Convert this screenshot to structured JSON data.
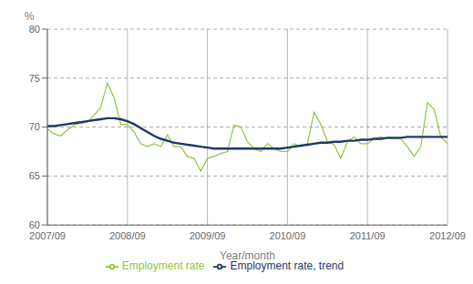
{
  "chart_data": {
    "type": "line",
    "xlabel": "Year/month",
    "ylabel": "%",
    "categories": [
      "2007/09",
      null,
      null,
      null,
      null,
      null,
      null,
      null,
      null,
      null,
      null,
      null,
      "2008/09",
      null,
      null,
      null,
      null,
      null,
      null,
      null,
      null,
      null,
      null,
      null,
      "2009/09",
      null,
      null,
      null,
      null,
      null,
      null,
      null,
      null,
      null,
      null,
      null,
      "2010/09",
      null,
      null,
      null,
      null,
      null,
      null,
      null,
      null,
      null,
      null,
      null,
      "2011/09",
      null,
      null,
      null,
      null,
      null,
      null,
      null,
      null,
      null,
      null,
      null,
      "2012/09"
    ],
    "series": [
      {
        "name": "Employment rate",
        "color": "#8dc63f",
        "values": [
          69.8,
          69.3,
          69.1,
          69.7,
          70.2,
          70.4,
          70.5,
          71.2,
          72.0,
          74.5,
          73.0,
          70.3,
          70.2,
          69.5,
          68.3,
          68.0,
          68.3,
          68.0,
          69.2,
          68.0,
          68.0,
          67.0,
          66.8,
          65.5,
          66.8,
          67.0,
          67.3,
          67.5,
          70.2,
          70.0,
          68.5,
          67.8,
          67.5,
          68.3,
          67.8,
          67.5,
          67.5,
          68.3,
          68.0,
          68.3,
          71.5,
          70.3,
          68.5,
          68.2,
          66.8,
          68.5,
          69.0,
          68.3,
          68.3,
          68.8,
          69.0,
          68.8,
          68.8,
          68.8,
          68.0,
          67.0,
          68.0,
          72.5,
          71.8,
          69.0,
          68.3
        ]
      },
      {
        "name": "Employment rate, trend",
        "color": "#1f3864",
        "values": [
          70.1,
          70.1,
          70.2,
          70.3,
          70.4,
          70.5,
          70.6,
          70.7,
          70.8,
          70.9,
          70.9,
          70.8,
          70.6,
          70.3,
          69.9,
          69.5,
          69.1,
          68.8,
          68.6,
          68.4,
          68.3,
          68.2,
          68.1,
          68.0,
          67.9,
          67.8,
          67.8,
          67.8,
          67.8,
          67.8,
          67.8,
          67.8,
          67.8,
          67.8,
          67.8,
          67.8,
          67.9,
          68.0,
          68.1,
          68.2,
          68.3,
          68.4,
          68.4,
          68.5,
          68.5,
          68.6,
          68.6,
          68.7,
          68.7,
          68.8,
          68.8,
          68.9,
          68.9,
          68.9,
          69.0,
          69.0,
          69.0,
          69.0,
          69.0,
          69.0,
          69.0
        ]
      }
    ],
    "ylim": [
      60,
      80
    ],
    "yticks": [
      60,
      65,
      70,
      75,
      80
    ],
    "grid": true,
    "legend": "bottom"
  }
}
